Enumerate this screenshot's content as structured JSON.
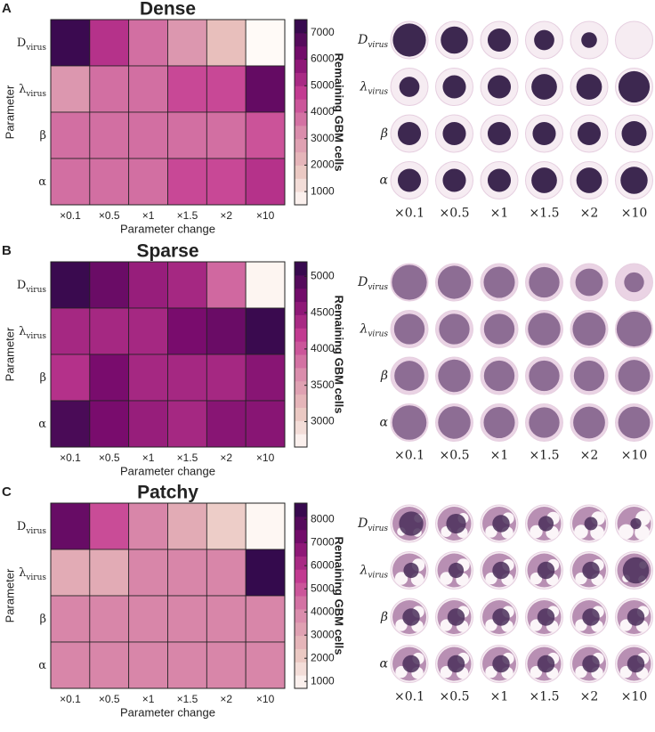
{
  "chart_data": [
    {
      "type": "heatmap",
      "panel": "A",
      "title": "Dense",
      "categories": [
        "×0.1",
        "×0.5",
        "×1",
        "×1.5",
        "×2",
        "×10"
      ],
      "rows": [
        [
          "D",
          "virus"
        ],
        [
          "λ",
          "virus"
        ],
        [
          "β"
        ],
        [
          "α"
        ]
      ],
      "values": [
        [
          7200,
          5000,
          3800,
          3000,
          2000,
          500
        ],
        [
          3000,
          3800,
          3800,
          4500,
          4500,
          6500
        ],
        [
          3800,
          3800,
          3800,
          3800,
          3800,
          4300
        ],
        [
          3800,
          3800,
          3800,
          4500,
          4500,
          5000
        ]
      ],
      "clim": [
        500,
        7500
      ],
      "cticks": [
        1000,
        2000,
        3000,
        4000,
        5000,
        6000,
        7000
      ],
      "colorbar_label": "Remaining GBM cells",
      "xlabel": "Parameter change",
      "ylabel": "Parameter",
      "colormap": [
        "#fffaf7",
        "#e9c3bd",
        "#d98bab",
        "#c53d92",
        "#7b0c6e",
        "#2a0a48"
      ]
    },
    {
      "type": "heatmap",
      "panel": "B",
      "title": "Sparse",
      "categories": [
        "×0.1",
        "×0.5",
        "×1",
        "×1.5",
        "×2",
        "×10"
      ],
      "rows": [
        [
          "D",
          "virus"
        ],
        [
          "λ",
          "virus"
        ],
        [
          "β"
        ],
        [
          "α"
        ]
      ],
      "values": [
        [
          5100,
          4800,
          4500,
          4400,
          3900,
          2700
        ],
        [
          4400,
          4400,
          4400,
          4700,
          4800,
          5100
        ],
        [
          4300,
          4700,
          4400,
          4400,
          4400,
          4600
        ],
        [
          5000,
          4700,
          4500,
          4400,
          4600,
          4600
        ]
      ],
      "clim": [
        2650,
        5200
      ],
      "cticks": [
        3000,
        3500,
        4000,
        4500,
        5000
      ],
      "colorbar_label": "Remaining GBM cells",
      "xlabel": "Parameter change",
      "ylabel": "Parameter",
      "colormap": [
        "#fffaf7",
        "#e9c3bd",
        "#d98bab",
        "#c53d92",
        "#7b0c6e",
        "#2a0a48"
      ]
    },
    {
      "type": "heatmap",
      "panel": "C",
      "title": "Patchy",
      "categories": [
        "×0.1",
        "×0.5",
        "×1",
        "×1.5",
        "×2",
        "×10"
      ],
      "rows": [
        [
          "D",
          "virus"
        ],
        [
          "λ",
          "virus"
        ],
        [
          "β"
        ],
        [
          "α"
        ]
      ],
      "values": [
        [
          7500,
          5200,
          4000,
          3000,
          2000,
          800
        ],
        [
          3000,
          3000,
          4000,
          4000,
          4000,
          8500
        ],
        [
          4000,
          4000,
          4000,
          4000,
          4000,
          4000
        ],
        [
          4000,
          4000,
          4000,
          4000,
          4000,
          4000
        ]
      ],
      "clim": [
        700,
        8700
      ],
      "cticks": [
        1000,
        2000,
        3000,
        4000,
        5000,
        6000,
        7000,
        8000
      ],
      "colorbar_label": "Remaining GBM cells",
      "xlabel": "Parameter change",
      "ylabel": "Parameter",
      "colormap": [
        "#fffaf7",
        "#e9c3bd",
        "#d98bab",
        "#c53d92",
        "#7b0c6e",
        "#2a0a48"
      ]
    }
  ]
}
